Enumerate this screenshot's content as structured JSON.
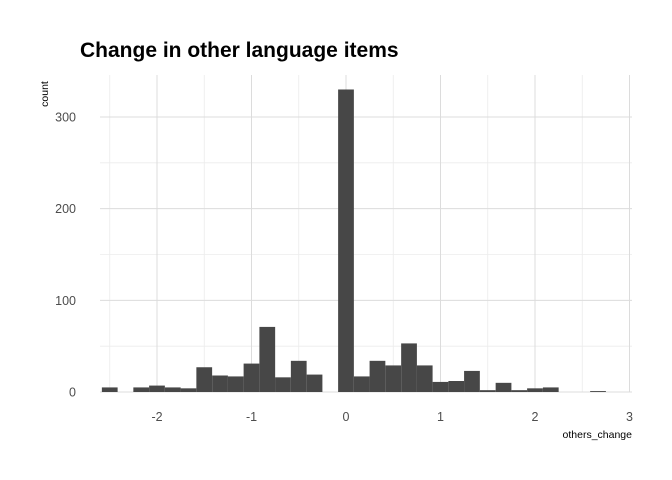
{
  "chart_data": {
    "type": "bar",
    "title": "Change in other language items",
    "xlabel": "others_change",
    "ylabel": "count",
    "xlim": [
      -2.75,
      3.0
    ],
    "ylim": [
      0,
      330
    ],
    "x_ticks": [
      -2,
      -1,
      0,
      1,
      2,
      3
    ],
    "x_tick_labels": [
      "-2",
      "-1",
      "0",
      "1",
      "2",
      "3"
    ],
    "y_ticks": [
      0,
      100,
      200,
      300
    ],
    "y_tick_labels": [
      "0",
      "100",
      "200",
      "300"
    ],
    "grid": true,
    "bar_color": "#474747",
    "bin_width": 0.1667,
    "bins": [
      {
        "x": -2.5,
        "count": 5
      },
      {
        "x": -2.333,
        "count": 0
      },
      {
        "x": -2.167,
        "count": 5
      },
      {
        "x": -2.0,
        "count": 7
      },
      {
        "x": -1.833,
        "count": 5
      },
      {
        "x": -1.667,
        "count": 4
      },
      {
        "x": -1.5,
        "count": 27
      },
      {
        "x": -1.333,
        "count": 18
      },
      {
        "x": -1.167,
        "count": 17
      },
      {
        "x": -1.0,
        "count": 31
      },
      {
        "x": -0.833,
        "count": 71
      },
      {
        "x": -0.667,
        "count": 16
      },
      {
        "x": -0.5,
        "count": 34
      },
      {
        "x": -0.333,
        "count": 19
      },
      {
        "x": -0.167,
        "count": 0
      },
      {
        "x": 0.0,
        "count": 330
      },
      {
        "x": 0.167,
        "count": 17
      },
      {
        "x": 0.333,
        "count": 34
      },
      {
        "x": 0.5,
        "count": 29
      },
      {
        "x": 0.667,
        "count": 53
      },
      {
        "x": 0.833,
        "count": 29
      },
      {
        "x": 1.0,
        "count": 11
      },
      {
        "x": 1.167,
        "count": 12
      },
      {
        "x": 1.333,
        "count": 23
      },
      {
        "x": 1.5,
        "count": 2
      },
      {
        "x": 1.667,
        "count": 10
      },
      {
        "x": 1.833,
        "count": 2
      },
      {
        "x": 2.0,
        "count": 4
      },
      {
        "x": 2.167,
        "count": 5
      },
      {
        "x": 2.333,
        "count": 0
      },
      {
        "x": 2.5,
        "count": 0
      },
      {
        "x": 2.667,
        "count": 1
      }
    ]
  }
}
